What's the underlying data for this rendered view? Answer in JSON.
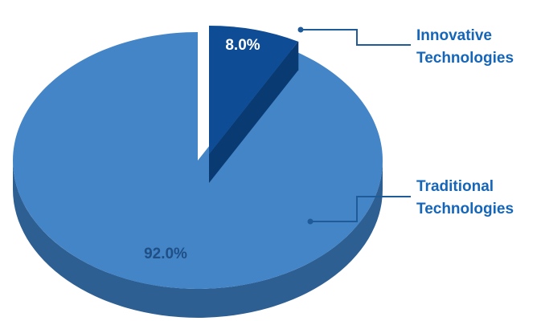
{
  "chart_data": {
    "type": "pie",
    "categories": [
      "Innovative Technologies",
      "Traditional Technologies"
    ],
    "values": [
      8.0,
      92.0
    ],
    "unit": "%",
    "value_labels": [
      "8.0%",
      "92.0%"
    ],
    "legend": [
      {
        "line1": "Innovative",
        "line2": "Technologies"
      },
      {
        "line1": "Traditional",
        "line2": "Technologies"
      }
    ],
    "style": "3d-exploded",
    "exploded_slice": "Innovative Technologies",
    "legend_placement": "right",
    "colors": {
      "innovative_top": "#0e4d96",
      "innovative_side": "#0a3a72",
      "traditional_top": "#4485c8",
      "traditional_side": "#2e5f93",
      "label_innovative": "#ffffff",
      "label_traditional": "#1f4f85",
      "legend_text": "#1565b8",
      "leader_line": "#1f5a99"
    }
  }
}
